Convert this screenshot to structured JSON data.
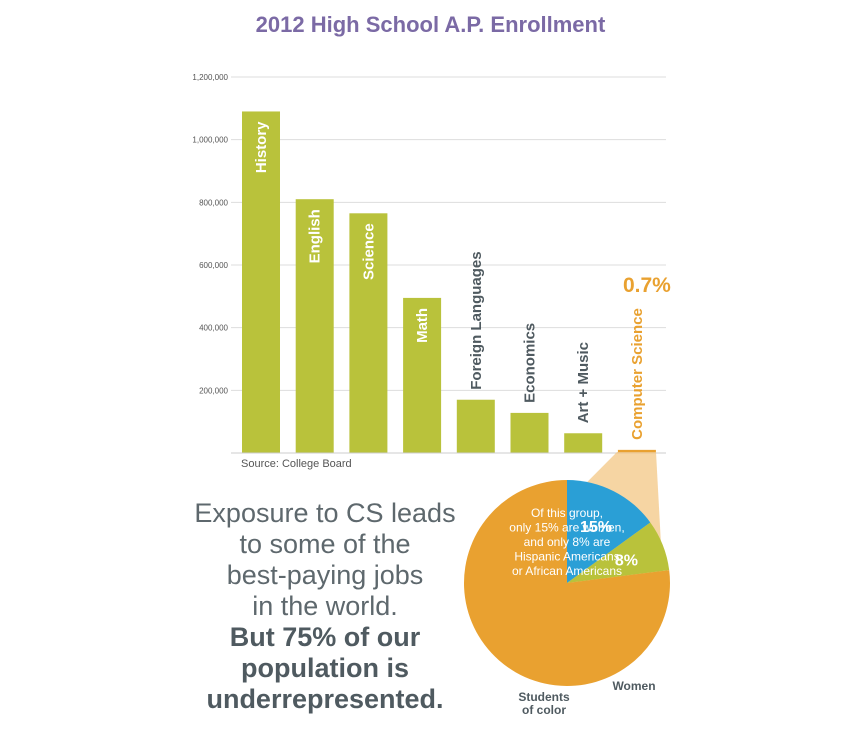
{
  "chart_data": {
    "type": "bar",
    "title": "2012 High School A.P. Enrollment",
    "categories": [
      "History",
      "English",
      "Science",
      "Math",
      "Foreign Languages",
      "Economics",
      "Art + Music",
      "Computer Science"
    ],
    "values": [
      1090000,
      810000,
      765000,
      495000,
      170000,
      128000,
      63000,
      10000
    ],
    "ylim": [
      0,
      1200000
    ],
    "yticks": [
      200000,
      400000,
      600000,
      800000,
      1000000,
      1200000
    ],
    "ytick_labels": [
      "200,000",
      "400,000",
      "600,000",
      "800,000",
      "1,000,000",
      "1,200,000"
    ],
    "highlight": {
      "category": "Computer Science",
      "annotation": "0.7%"
    },
    "colors": {
      "bar": "#b9c23b",
      "highlight": "#e9a130",
      "title": "#7b6aa5",
      "grid": "#dddddd"
    },
    "grid": true,
    "source": "Source: College Board"
  },
  "pie": {
    "type": "pie",
    "intro": [
      "Of this group,",
      "only 15% are women,",
      "and only 8% are",
      "Hispanic Americans",
      "or African Americans"
    ],
    "slices": [
      {
        "name": "Women",
        "value": 15,
        "label": "15%",
        "color": "#2a9fd6"
      },
      {
        "name": "Students of color",
        "value": 8,
        "label": "8%",
        "color": "#b9c23b"
      },
      {
        "name": "",
        "value": 77,
        "label": "",
        "color": "#e9a130"
      }
    ],
    "women_label": "Women",
    "students_label_lines": [
      "Students",
      "of color"
    ]
  },
  "tagline": {
    "light_lines": [
      "Exposure to CS leads",
      "to some of the",
      "best-paying jobs",
      "in the world."
    ],
    "strong_lines": [
      "But 75% of our",
      "population is",
      "underrepresented."
    ]
  }
}
